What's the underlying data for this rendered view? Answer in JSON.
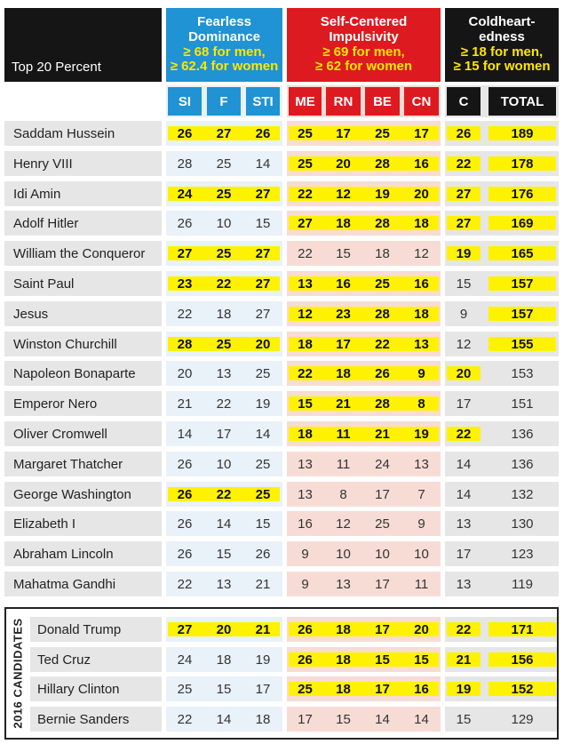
{
  "header": {
    "table_title": "Top 20 Percent",
    "fearless": {
      "title": "Fearless Dominance",
      "criteria_men": "≥ 68 for men,",
      "criteria_women": "≥ 62.4 for women"
    },
    "selfcentered": {
      "title": "Self-Centered Impulsivity",
      "criteria_men": "≥ 69 for men,",
      "criteria_women": "≥ 62 for women"
    },
    "coldheart": {
      "title": "Coldheart-edness",
      "criteria_men": "≥ 18 for men,",
      "criteria_women": "≥ 15 for women"
    }
  },
  "columns": [
    "SI",
    "F",
    "STI",
    "ME",
    "RN",
    "BE",
    "CN",
    "C",
    "TOTAL"
  ],
  "colors": {
    "blue": "#1f93d3",
    "red": "#dd1a1f",
    "black": "#151515",
    "highlight": "#fff200"
  },
  "rows": [
    {
      "name": "Saddam Hussein",
      "values": [
        "26",
        "27",
        "26",
        "25",
        "17",
        "25",
        "17",
        "26",
        "189"
      ],
      "hl": [
        1,
        1,
        1,
        1,
        1,
        1,
        1,
        1,
        1
      ]
    },
    {
      "name": "Henry VIII",
      "values": [
        "28",
        "25",
        "14",
        "25",
        "20",
        "28",
        "16",
        "22",
        "178"
      ],
      "hl": [
        0,
        0,
        0,
        1,
        1,
        1,
        1,
        1,
        1
      ]
    },
    {
      "name": "Idi Amin",
      "values": [
        "24",
        "25",
        "27",
        "22",
        "12",
        "19",
        "20",
        "27",
        "176"
      ],
      "hl": [
        1,
        1,
        1,
        1,
        1,
        1,
        1,
        1,
        1
      ]
    },
    {
      "name": "Adolf Hitler",
      "values": [
        "26",
        "10",
        "15",
        "27",
        "18",
        "28",
        "18",
        "27",
        "169"
      ],
      "hl": [
        0,
        0,
        0,
        1,
        1,
        1,
        1,
        1,
        1
      ]
    },
    {
      "name": "William the Conqueror",
      "values": [
        "27",
        "25",
        "27",
        "22",
        "15",
        "18",
        "12",
        "19",
        "165"
      ],
      "hl": [
        1,
        1,
        1,
        0,
        0,
        0,
        0,
        1,
        1
      ]
    },
    {
      "name": "Saint Paul",
      "values": [
        "23",
        "22",
        "27",
        "13",
        "16",
        "25",
        "16",
        "15",
        "157"
      ],
      "hl": [
        1,
        1,
        1,
        1,
        1,
        1,
        1,
        0,
        1
      ]
    },
    {
      "name": "Jesus",
      "values": [
        "22",
        "18",
        "27",
        "12",
        "23",
        "28",
        "18",
        "9",
        "157"
      ],
      "hl": [
        0,
        0,
        0,
        1,
        1,
        1,
        1,
        0,
        1
      ]
    },
    {
      "name": "Winston Churchill",
      "values": [
        "28",
        "25",
        "20",
        "18",
        "17",
        "22",
        "13",
        "12",
        "155"
      ],
      "hl": [
        1,
        1,
        1,
        1,
        1,
        1,
        1,
        0,
        1
      ]
    },
    {
      "name": "Napoleon Bonaparte",
      "values": [
        "20",
        "13",
        "25",
        "22",
        "18",
        "26",
        "9",
        "20",
        "153"
      ],
      "hl": [
        0,
        0,
        0,
        1,
        1,
        1,
        1,
        1,
        0
      ]
    },
    {
      "name": "Emperor Nero",
      "values": [
        "21",
        "22",
        "19",
        "15",
        "21",
        "28",
        "8",
        "17",
        "151"
      ],
      "hl": [
        0,
        0,
        0,
        1,
        1,
        1,
        1,
        0,
        0
      ]
    },
    {
      "name": "Oliver Cromwell",
      "values": [
        "14",
        "17",
        "14",
        "18",
        "11",
        "21",
        "19",
        "22",
        "136"
      ],
      "hl": [
        0,
        0,
        0,
        1,
        1,
        1,
        1,
        1,
        0
      ]
    },
    {
      "name": "Margaret Thatcher",
      "values": [
        "26",
        "10",
        "25",
        "13",
        "11",
        "24",
        "13",
        "14",
        "136"
      ],
      "hl": [
        0,
        0,
        0,
        0,
        0,
        0,
        0,
        0,
        0
      ]
    },
    {
      "name": "George Washington",
      "values": [
        "26",
        "22",
        "25",
        "13",
        "8",
        "17",
        "7",
        "14",
        "132"
      ],
      "hl": [
        1,
        1,
        1,
        0,
        0,
        0,
        0,
        0,
        0
      ]
    },
    {
      "name": "Elizabeth I",
      "values": [
        "26",
        "14",
        "15",
        "16",
        "12",
        "25",
        "9",
        "13",
        "130"
      ],
      "hl": [
        0,
        0,
        0,
        0,
        0,
        0,
        0,
        0,
        0
      ]
    },
    {
      "name": "Abraham Lincoln",
      "values": [
        "26",
        "15",
        "26",
        "9",
        "10",
        "10",
        "10",
        "17",
        "123"
      ],
      "hl": [
        0,
        0,
        0,
        0,
        0,
        0,
        0,
        0,
        0
      ]
    },
    {
      "name": "Mahatma Gandhi",
      "values": [
        "22",
        "13",
        "21",
        "9",
        "13",
        "17",
        "11",
        "13",
        "119"
      ],
      "hl": [
        0,
        0,
        0,
        0,
        0,
        0,
        0,
        0,
        0
      ]
    }
  ],
  "candidates": {
    "label": "2016 CANDIDATES",
    "rows": [
      {
        "name": "Donald Trump",
        "values": [
          "27",
          "20",
          "21",
          "26",
          "18",
          "17",
          "20",
          "22",
          "171"
        ],
        "hl": [
          1,
          1,
          1,
          1,
          1,
          1,
          1,
          1,
          1
        ]
      },
      {
        "name": "Ted Cruz",
        "values": [
          "24",
          "18",
          "19",
          "26",
          "18",
          "15",
          "15",
          "21",
          "156"
        ],
        "hl": [
          0,
          0,
          0,
          1,
          1,
          1,
          1,
          1,
          1
        ]
      },
      {
        "name": "Hillary Clinton",
        "values": [
          "25",
          "15",
          "17",
          "25",
          "18",
          "17",
          "16",
          "19",
          "152"
        ],
        "hl": [
          0,
          0,
          0,
          1,
          1,
          1,
          1,
          1,
          1
        ]
      },
      {
        "name": "Bernie Sanders",
        "values": [
          "22",
          "14",
          "18",
          "17",
          "15",
          "14",
          "14",
          "15",
          "129"
        ],
        "hl": [
          0,
          0,
          0,
          0,
          0,
          0,
          0,
          0,
          0
        ]
      }
    ]
  }
}
